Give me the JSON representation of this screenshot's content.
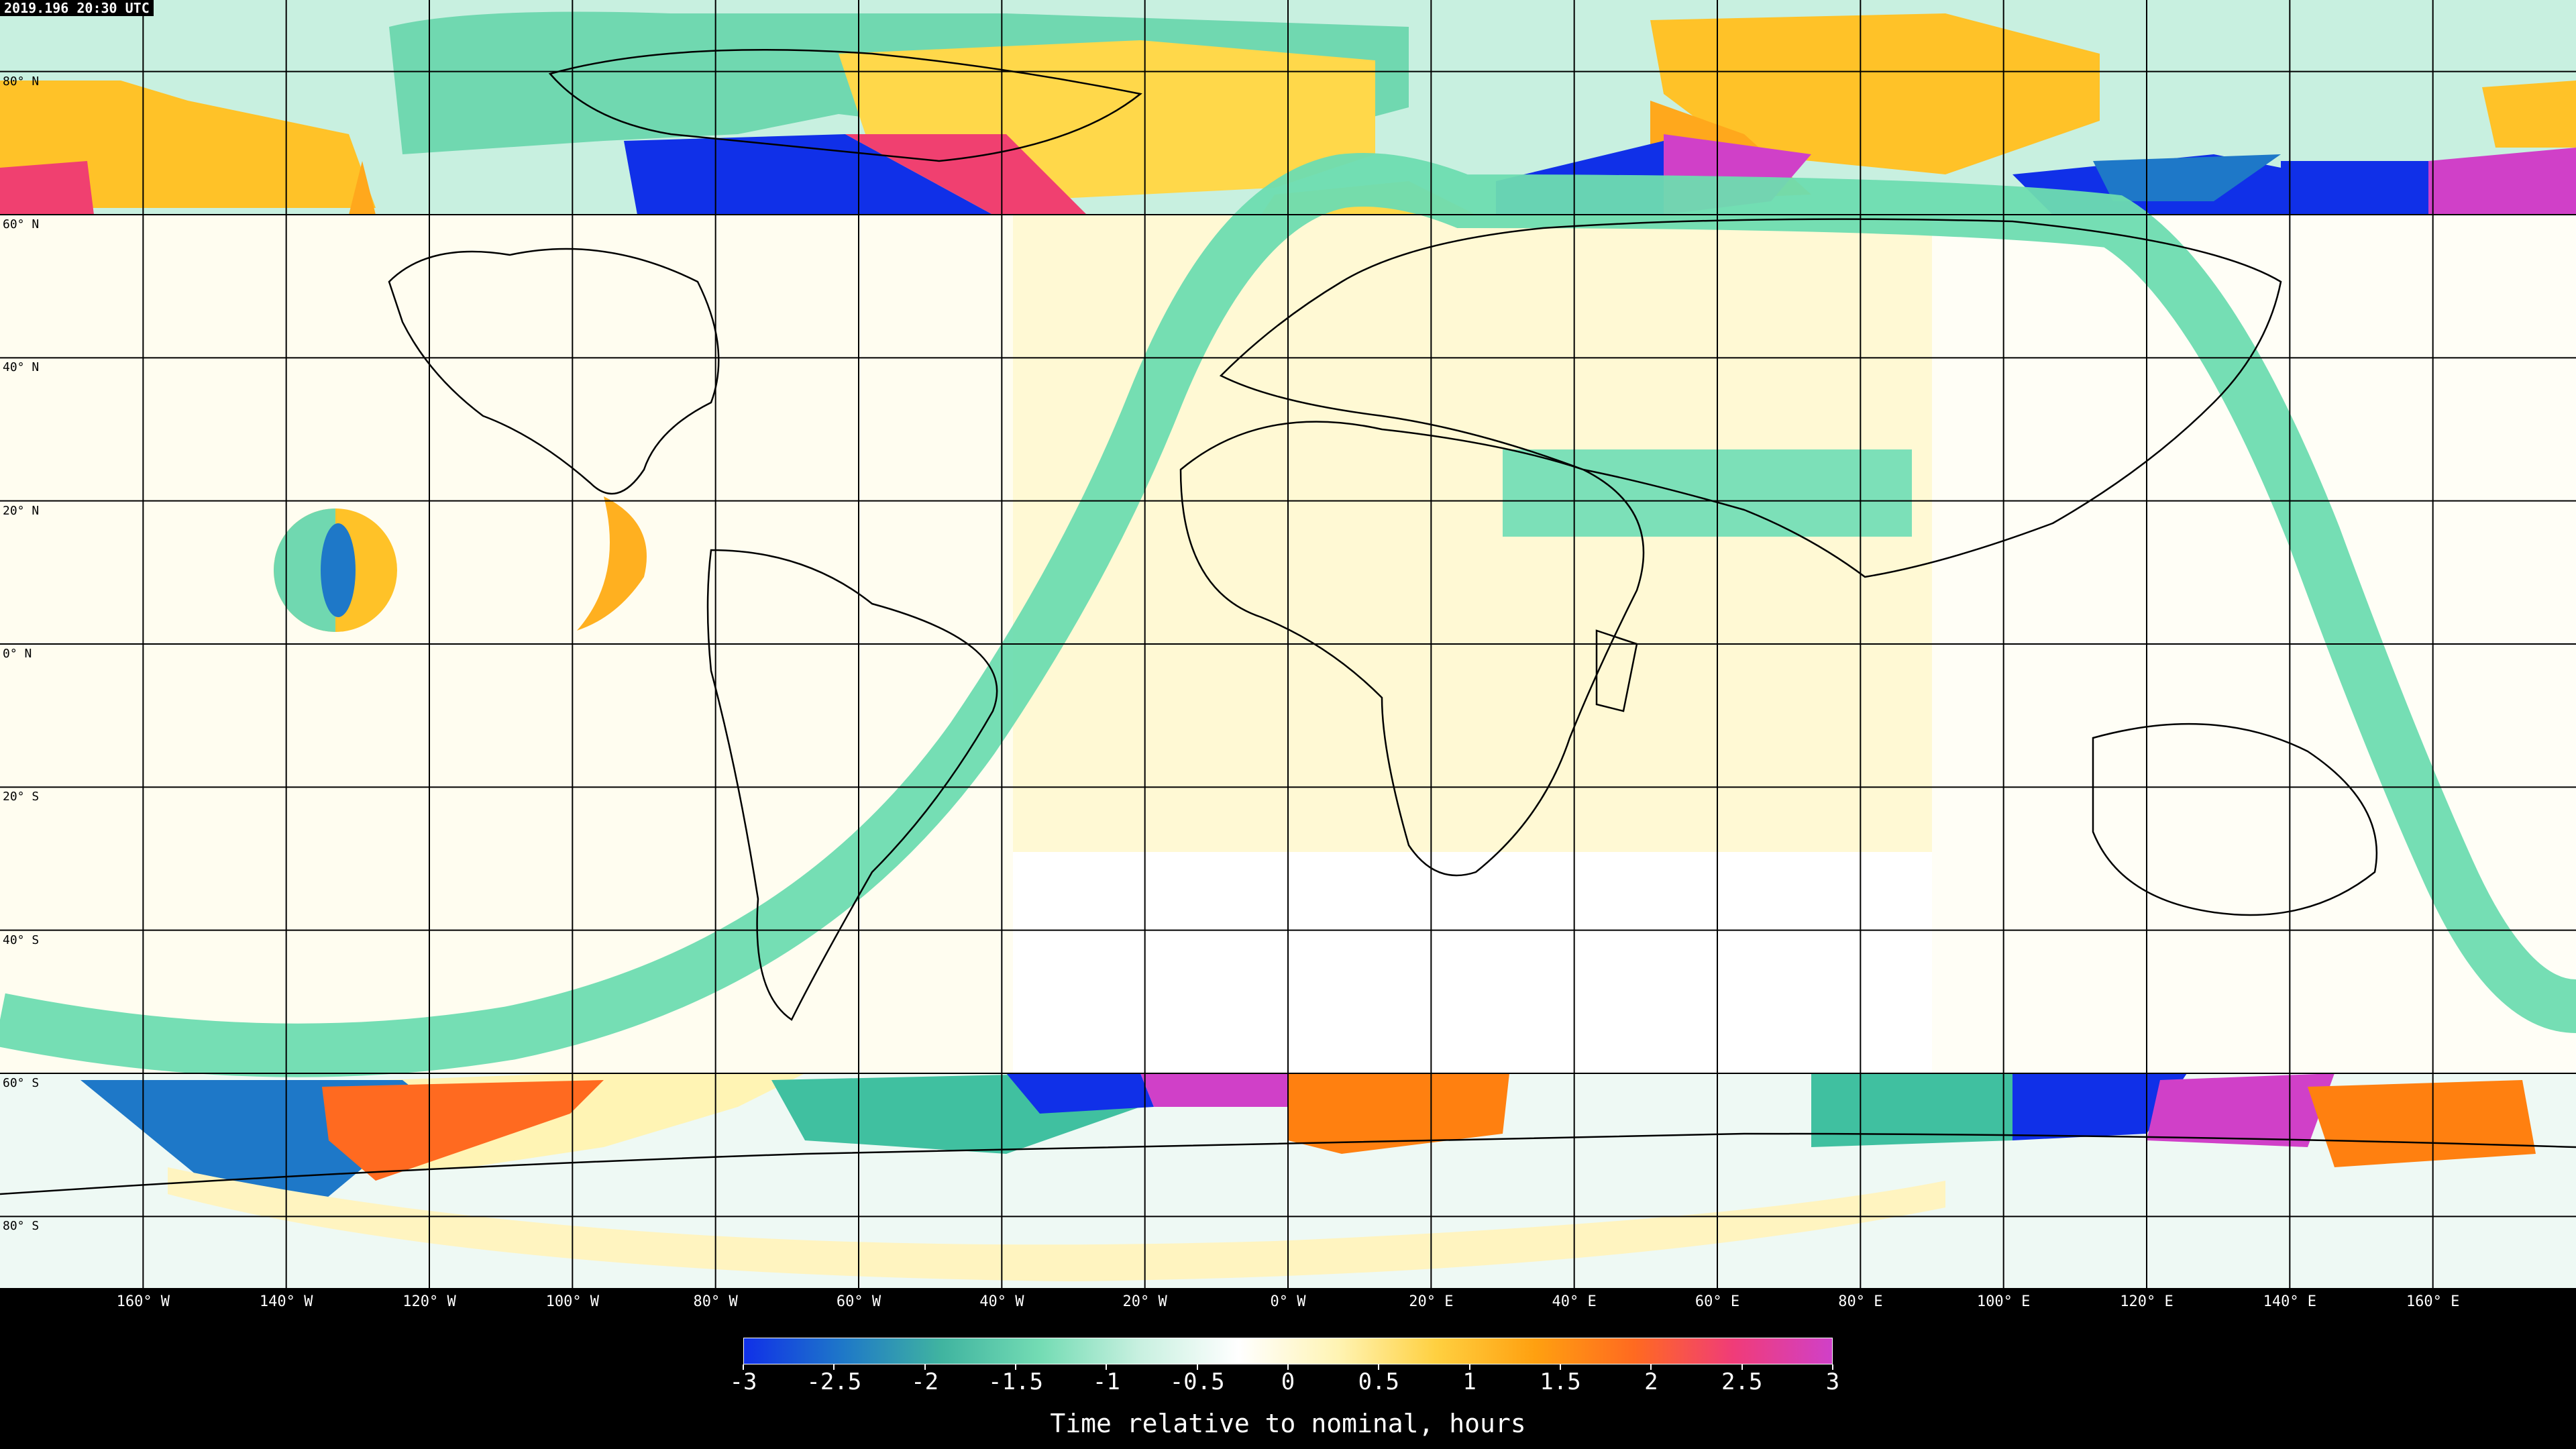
{
  "timestamp": "2019.196 20:30 UTC",
  "lat_labels": [
    "80° N",
    "60° N",
    "40° N",
    "20° N",
    "0° N",
    "20° S",
    "40° S",
    "60° S",
    "80° S"
  ],
  "lon_labels": [
    "160° W",
    "140° W",
    "120° W",
    "100° W",
    "80° W",
    "60° W",
    "40° W",
    "20° W",
    "0° W",
    "20° E",
    "40° E",
    "60° E",
    "80° E",
    "100° E",
    "120° E",
    "140° E",
    "160° E"
  ],
  "colorbar": {
    "ticks": [
      "-3",
      "-2.5",
      "-2",
      "-1.5",
      "-1",
      "-0.5",
      "0",
      "0.5",
      "1",
      "1.5",
      "2",
      "2.5",
      "3"
    ],
    "title": "Time relative to nominal, hours",
    "colors": [
      "#1030e8",
      "#1e78c8",
      "#40b4a0",
      "#74dcb4",
      "#c8f0e0",
      "#ffffff",
      "#fff4b4",
      "#ffd040",
      "#ffa010",
      "#ff6a20",
      "#f03c78",
      "#d040c8"
    ]
  },
  "zone_colors": {
    "background": "#fffbe4",
    "equatorial_band": "#fdf7d2",
    "track": "#6edcb0",
    "arabia": "#7ce0b8"
  }
}
